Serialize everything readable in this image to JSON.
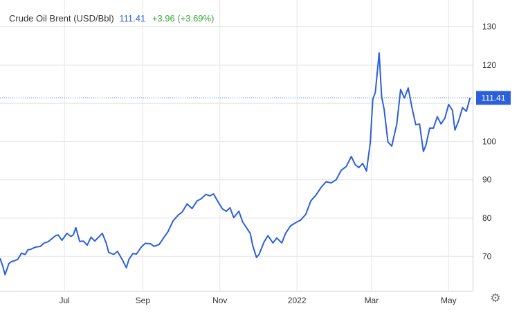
{
  "legend": {
    "instrument": "Crude Oil Brent (USD/Bbl)",
    "last_price": "111.41",
    "change": "+3.96 (+3.69%)"
  },
  "colors": {
    "line": "#2c5fdc",
    "price_tag": "#2c5fdc",
    "change": "#3aa53a",
    "grid": "#e6e6e6"
  },
  "icons": {
    "settings": "gear-icon"
  },
  "chart_data": {
    "type": "line",
    "title": "Crude Oil Brent (USD/Bbl)",
    "xlabel": "",
    "ylabel": "",
    "ylim": [
      61,
      137
    ],
    "yticks": [
      70,
      80,
      90,
      100,
      110,
      120,
      130
    ],
    "ytick_labels": [
      "70",
      "80",
      "90",
      "100",
      "",
      "120",
      "130"
    ],
    "xlim": [
      "2021-05-11",
      "2022-05-20"
    ],
    "xticks": [
      {
        "date": "2021-07-01",
        "label": "Jul"
      },
      {
        "date": "2021-09-01",
        "label": "Sep"
      },
      {
        "date": "2021-11-01",
        "label": "Nov"
      },
      {
        "date": "2022-01-01",
        "label": "2022"
      },
      {
        "date": "2022-03-01",
        "label": "Mar"
      },
      {
        "date": "2022-05-01",
        "label": "May"
      }
    ],
    "current_price": 111.41,
    "current_price_label": "111.41",
    "grid": true,
    "series": [
      {
        "x": [
          "2021-05-11",
          "2021-05-13",
          "2021-05-15",
          "2021-05-18",
          "2021-05-20",
          "2021-05-22",
          "2021-05-25",
          "2021-05-28",
          "2021-05-31",
          "2021-06-02",
          "2021-06-04",
          "2021-06-08",
          "2021-06-12",
          "2021-06-15",
          "2021-06-18",
          "2021-06-21",
          "2021-06-24",
          "2021-06-26",
          "2021-06-29",
          "2021-07-03",
          "2021-07-06",
          "2021-07-08",
          "2021-07-10",
          "2021-07-13",
          "2021-07-16",
          "2021-07-19",
          "2021-07-22",
          "2021-07-25",
          "2021-07-28",
          "2021-07-31",
          "2021-08-03",
          "2021-08-05",
          "2021-08-09",
          "2021-08-12",
          "2021-08-16",
          "2021-08-19",
          "2021-08-21",
          "2021-08-24",
          "2021-08-27",
          "2021-08-31",
          "2021-09-03",
          "2021-09-07",
          "2021-09-10",
          "2021-09-14",
          "2021-09-17",
          "2021-09-21",
          "2021-09-25",
          "2021-09-29",
          "2021-10-02",
          "2021-10-06",
          "2021-10-10",
          "2021-10-14",
          "2021-10-17",
          "2021-10-21",
          "2021-10-24",
          "2021-10-27",
          "2021-10-31",
          "2021-11-03",
          "2021-11-06",
          "2021-11-09",
          "2021-11-12",
          "2021-11-16",
          "2021-11-19",
          "2021-11-22",
          "2021-11-25",
          "2021-11-27",
          "2021-11-30",
          "2021-12-02",
          "2021-12-06",
          "2021-12-09",
          "2021-12-13",
          "2021-12-16",
          "2021-12-20",
          "2021-12-23",
          "2021-12-27",
          "2021-12-31",
          "2022-01-04",
          "2022-01-08",
          "2022-01-12",
          "2022-01-16",
          "2022-01-20",
          "2022-01-24",
          "2022-01-28",
          "2022-02-01",
          "2022-02-05",
          "2022-02-09",
          "2022-02-13",
          "2022-02-16",
          "2022-02-19",
          "2022-02-22",
          "2022-02-25",
          "2022-02-28",
          "2022-03-02",
          "2022-03-04",
          "2022-03-07",
          "2022-03-09",
          "2022-03-11",
          "2022-03-14",
          "2022-03-17",
          "2022-03-21",
          "2022-03-24",
          "2022-03-27",
          "2022-03-30",
          "2022-04-02",
          "2022-04-05",
          "2022-04-08",
          "2022-04-11",
          "2022-04-13",
          "2022-04-16",
          "2022-04-19",
          "2022-04-22",
          "2022-04-25",
          "2022-04-28",
          "2022-05-01",
          "2022-05-04",
          "2022-05-06",
          "2022-05-09",
          "2022-05-12",
          "2022-05-15",
          "2022-05-18"
        ],
        "values": [
          69.5,
          67.6,
          65.2,
          68.1,
          68.6,
          68.8,
          69.2,
          70.8,
          70.5,
          71.7,
          71.8,
          72.4,
          72.6,
          73.5,
          73.8,
          74.6,
          75.4,
          75.6,
          74.2,
          76.0,
          75.2,
          75.6,
          77.5,
          73.9,
          74.0,
          72.9,
          75.0,
          74.0,
          75.0,
          76.0,
          73.5,
          71.0,
          70.5,
          71.3,
          69.0,
          67.0,
          69.2,
          70.7,
          70.6,
          72.5,
          73.4,
          73.3,
          72.6,
          73.1,
          74.6,
          76.5,
          79.3,
          80.8,
          81.5,
          83.7,
          82.5,
          84.5,
          85.0,
          86.2,
          85.8,
          86.3,
          84.0,
          82.4,
          81.8,
          82.7,
          80.1,
          81.8,
          79.0,
          77.5,
          76.0,
          72.8,
          69.7,
          70.5,
          73.8,
          75.4,
          73.5,
          74.8,
          73.5,
          76.0,
          78.0,
          78.8,
          79.5,
          81.0,
          84.5,
          86.0,
          88.0,
          89.5,
          89.2,
          90.0,
          92.5,
          93.5,
          96.1,
          94.0,
          93.2,
          94.3,
          92.3,
          99.7,
          111.0,
          112.9,
          123.2,
          111.8,
          108.3,
          99.9,
          98.8,
          104.6,
          113.6,
          111.4,
          114.0,
          108.9,
          104.4,
          104.6,
          97.4,
          99.0,
          103.5,
          103.5,
          106.5,
          104.6,
          106.1,
          109.7,
          108.2,
          103.0,
          105.5,
          108.9,
          107.9,
          111.41
        ]
      }
    ]
  }
}
